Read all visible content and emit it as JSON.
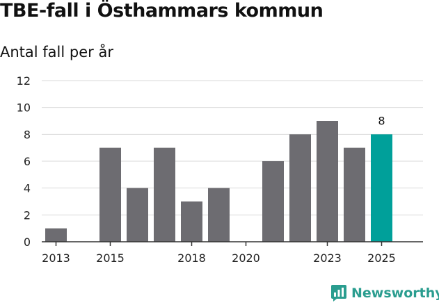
{
  "title": "TBE-fall i Östhammars kommun",
  "subtitle": "Antal fall per år",
  "chart_data": {
    "type": "bar",
    "title": "TBE-fall i Östhammars kommun",
    "subtitle": "Antal fall per år",
    "categories": [
      "2013",
      "2014",
      "2015",
      "2016",
      "2017",
      "2018",
      "2019",
      "2020",
      "2021",
      "2022",
      "2023",
      "2024",
      "2025"
    ],
    "values": [
      1,
      0,
      7,
      4,
      7,
      3,
      4,
      0,
      6,
      8,
      9,
      7,
      8
    ],
    "x_tick_labels": [
      "2013",
      "2015",
      "2018",
      "2020",
      "2023",
      "2025"
    ],
    "y_ticks": [
      0,
      2,
      4,
      6,
      8,
      10,
      12
    ],
    "ylim": [
      0,
      12
    ],
    "grid": true,
    "highlight_category": "2025",
    "data_labels": [
      {
        "category": "2025",
        "text": "8"
      }
    ],
    "colors": {
      "bar": "#6d6c71",
      "highlight": "#00a09a",
      "grid": "#d9d9d9",
      "axis": "#333333"
    }
  },
  "logo": {
    "text": "Newsworthy",
    "color": "#2a9d8f"
  }
}
